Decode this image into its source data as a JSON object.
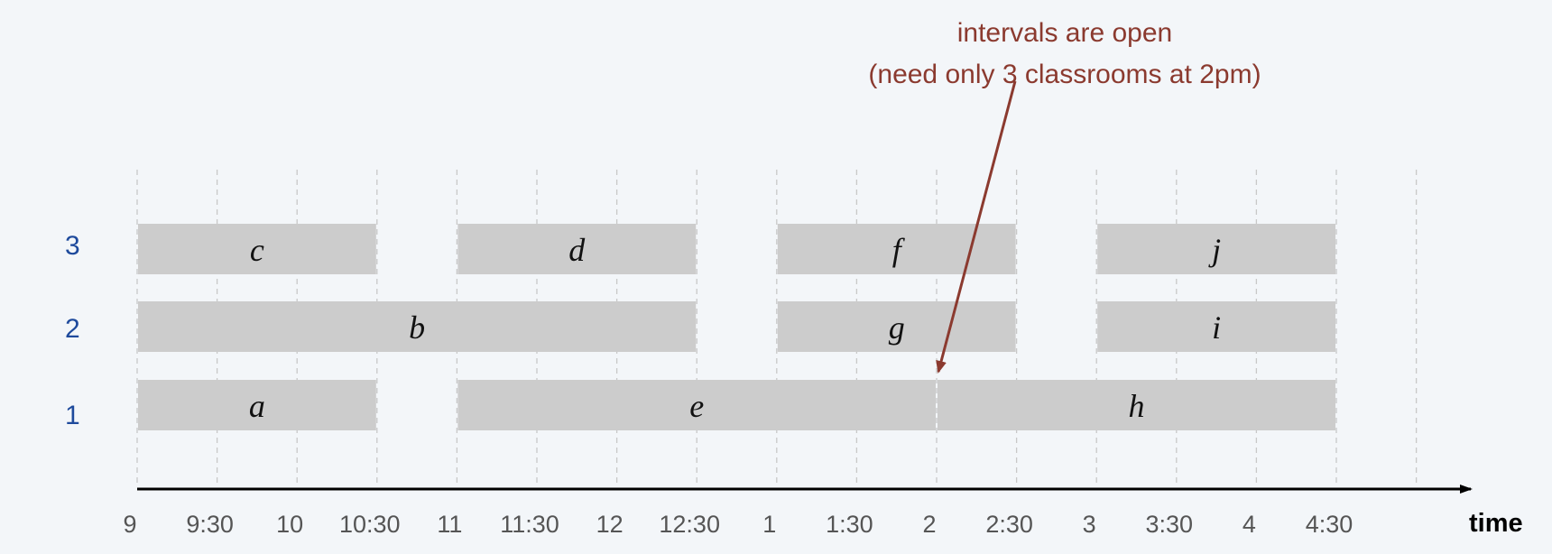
{
  "annotation": {
    "line1": "intervals are open",
    "line2": "(need only 3 classrooms at 2pm)",
    "color": "#8b3a2f"
  },
  "rows": [
    {
      "label": "3",
      "room": 3
    },
    {
      "label": "2",
      "room": 2
    },
    {
      "label": "1",
      "room": 1
    }
  ],
  "ticks": [
    "9",
    "9:30",
    "10",
    "10:30",
    "11",
    "11:30",
    "12",
    "12:30",
    "1",
    "1:30",
    "2",
    "2:30",
    "3",
    "3:30",
    "4",
    "4:30"
  ],
  "axis_label": "time",
  "intervals": [
    {
      "label": "a",
      "room": 1,
      "start": 0,
      "end": 1.5
    },
    {
      "label": "e",
      "room": 1,
      "start": 2,
      "end": 5
    },
    {
      "label": "h",
      "room": 1,
      "start": 5,
      "end": 7.5
    },
    {
      "label": "b",
      "room": 2,
      "start": 0,
      "end": 3.5
    },
    {
      "label": "g",
      "room": 2,
      "start": 4,
      "end": 5.5
    },
    {
      "label": "i",
      "room": 2,
      "start": 6,
      "end": 7.5
    },
    {
      "label": "c",
      "room": 3,
      "start": 0,
      "end": 1.5
    },
    {
      "label": "d",
      "room": 3,
      "start": 2,
      "end": 3.5
    },
    {
      "label": "f",
      "room": 3,
      "start": 4,
      "end": 5.5
    },
    {
      "label": "j",
      "room": 3,
      "start": 6,
      "end": 7.5
    }
  ],
  "colors": {
    "bar": "#cccccc",
    "row_label": "#1e4a9c",
    "gridline": "#c8c8c8"
  }
}
